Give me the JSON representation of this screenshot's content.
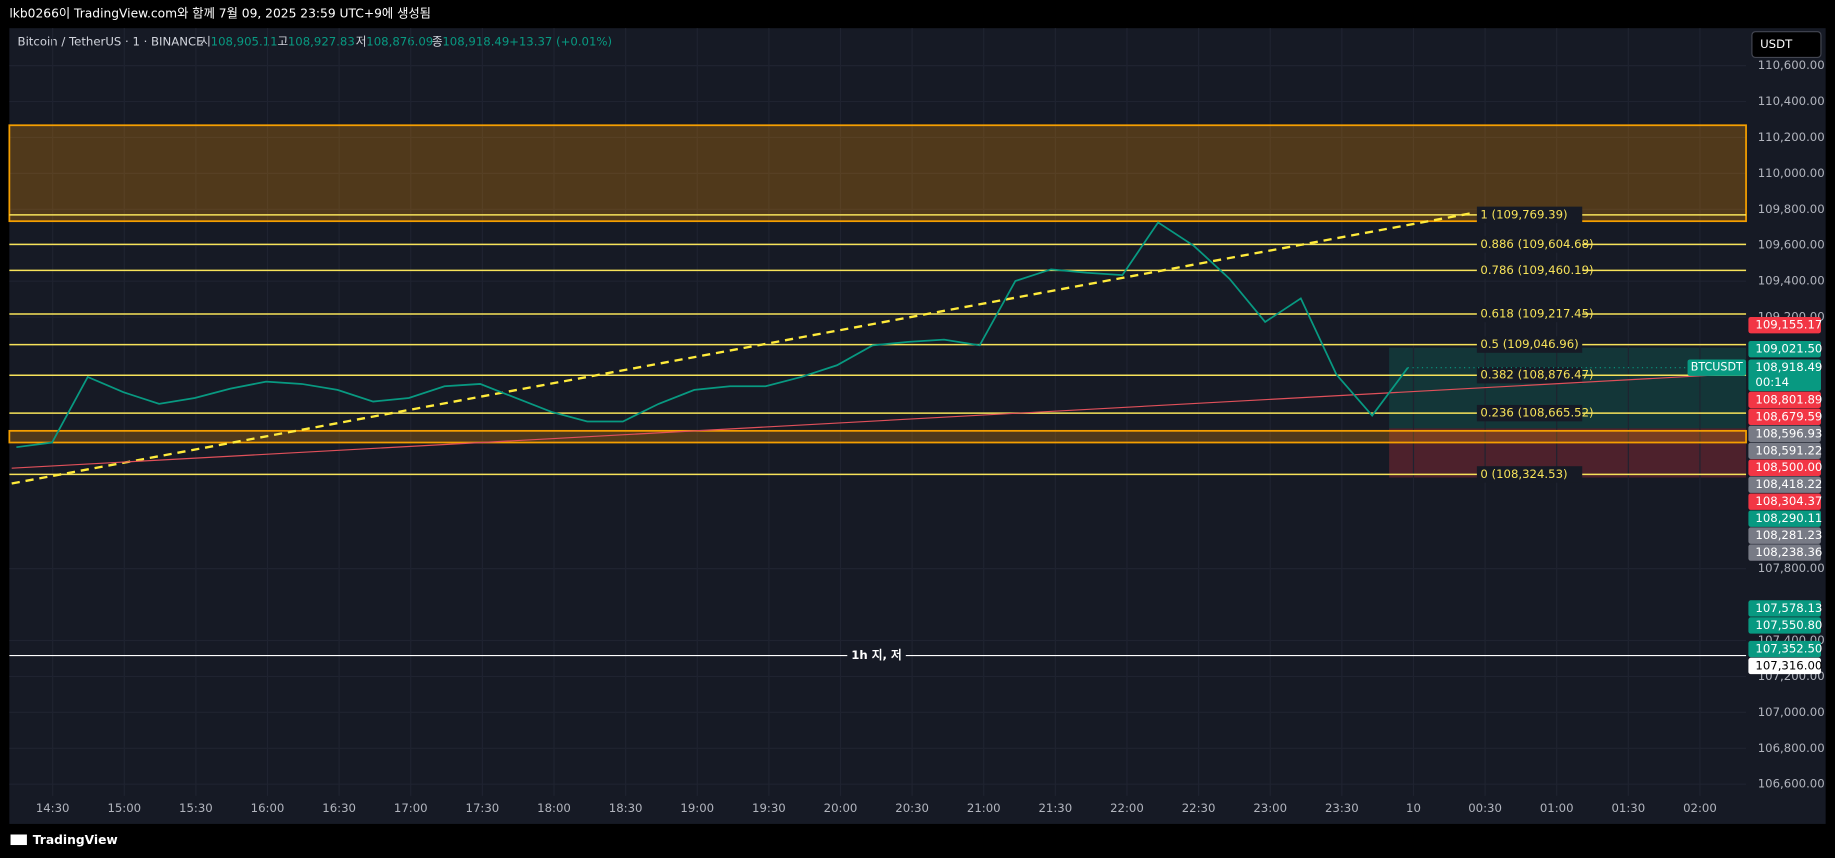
{
  "header": {
    "caption": "lkb0266이 TradingView.com와 함께 7월 09, 2025 23:59 UTC+9에 생성됨"
  },
  "symbol": {
    "name": "Bitcoin / TetherUS · 1 · BINANCE",
    "o_label": "시",
    "o": "108,905.11",
    "h_label": "고",
    "h": "108,927.83",
    "l_label": "저",
    "l": "108,876.09",
    "c_label": "종",
    "c": "108,918.49",
    "change": "+13.37 (+0.01%)"
  },
  "currency_button": "USDT",
  "footer": {
    "brand": "TradingView"
  },
  "chart_data": {
    "type": "line",
    "color": "#089981",
    "values": [
      108476,
      108502,
      108867,
      108782,
      108717,
      108750,
      108802,
      108841,
      108828,
      108795,
      108730,
      108750,
      108815,
      108828,
      108750,
      108672,
      108619,
      108619,
      108717,
      108795,
      108815,
      108815,
      108867,
      108932,
      109043,
      109062,
      109075,
      109043,
      109401,
      109466,
      109447,
      109434,
      109727,
      109597,
      109414,
      109173,
      109304,
      108880,
      108652,
      108918.49
    ],
    "ylim": [
      106535,
      110652
    ],
    "yticks": [
      {
        "value": 106600,
        "label": "106,600.00"
      },
      {
        "value": 106800,
        "label": "106,800.00"
      },
      {
        "value": 107000,
        "label": "107,000.00"
      },
      {
        "value": 107200,
        "label": "107,200.00"
      },
      {
        "value": 107400,
        "label": "107,400.00"
      },
      {
        "value": 107800,
        "label": "107,800.00"
      },
      {
        "value": 109200,
        "label": "109,200.00"
      },
      {
        "value": 109400,
        "label": "109,400.00"
      },
      {
        "value": 109600,
        "label": "109,600.00"
      },
      {
        "value": 109800,
        "label": "109,800.00"
      },
      {
        "value": 110000,
        "label": "110,000.00"
      },
      {
        "value": 110200,
        "label": "110,200.00"
      },
      {
        "value": 110400,
        "label": "110,400.00"
      },
      {
        "value": 110600,
        "label": "110,600.00"
      }
    ],
    "xticks": [
      "14:30",
      "15:00",
      "15:30",
      "16:00",
      "16:30",
      "17:00",
      "17:30",
      "18:00",
      "18:30",
      "19:00",
      "19:30",
      "20:00",
      "20:30",
      "21:00",
      "21:30",
      "22:00",
      "22:30",
      "23:00",
      "23:30",
      "10",
      "00:30",
      "01:00",
      "01:30",
      "02:00"
    ],
    "grid": true,
    "fib_levels": [
      {
        "value": 109769.39,
        "label": "1 (109,769.39)"
      },
      {
        "value": 109604.68,
        "label": "0.886 (109,604.68)"
      },
      {
        "value": 109460.19,
        "label": "0.786 (109,460.19)"
      },
      {
        "value": 109217.45,
        "label": "0.618 (109,217.45)"
      },
      {
        "value": 109046.96,
        "label": "0.5 (109,046.96)"
      },
      {
        "value": 108876.47,
        "label": "0.382 (108,876.47)"
      },
      {
        "value": 108665.52,
        "label": "0.236 (108,665.52)"
      },
      {
        "value": 108324.53,
        "label": "0 (108,324.53)"
      }
    ],
    "zones": [
      {
        "top": 110268,
        "bottom": 109734
      },
      {
        "top": 108567,
        "bottom": 108502
      }
    ],
    "trendlines": [
      {
        "from": 108274,
        "to": 109779,
        "color": "#ffeb3b",
        "dashed": true
      },
      {
        "from": 108359,
        "to": 108887,
        "color": "#e0505a",
        "dashed": false
      }
    ],
    "low_line": {
      "value": 107316,
      "label": "1h 지, 저"
    },
    "symbol_tag": "BTCUSDT",
    "countdown": "00:14",
    "price_labels": [
      {
        "value": 109155.17,
        "label": "109,155.17",
        "color": "#f23645"
      },
      {
        "value": 109021.5,
        "label": "109,021.50",
        "color": "#089981"
      },
      {
        "value": 108918.49,
        "label": "108,918.49",
        "color": "#089981"
      },
      {
        "value": 108801.89,
        "label": "108,801.89",
        "color": "#f23645"
      },
      {
        "value": 108679.59,
        "label": "108,679.59",
        "color": "#f23645"
      },
      {
        "value": 108596.93,
        "label": "108,596.93",
        "color": "#787b86"
      },
      {
        "value": 108591.22,
        "label": "108,591.22",
        "color": "#787b86"
      },
      {
        "value": 108500.0,
        "label": "108,500.00",
        "color": "#f23645"
      },
      {
        "value": 108418.22,
        "label": "108,418.22",
        "color": "#787b86"
      },
      {
        "value": 108304.37,
        "label": "108,304.37",
        "color": "#f23645"
      },
      {
        "value": 108290.11,
        "label": "108,290.11",
        "color": "#089981"
      },
      {
        "value": 108281.23,
        "label": "108,281.23",
        "color": "#787b86"
      },
      {
        "value": 108238.36,
        "label": "108,238.36",
        "color": "#787b86"
      },
      {
        "value": 107578.13,
        "label": "107,578.13",
        "color": "#089981"
      },
      {
        "value": 107550.8,
        "label": "107,550.80",
        "color": "#089981"
      },
      {
        "value": 107352.5,
        "label": "107,352.50",
        "color": "#089981"
      },
      {
        "value": 107316.0,
        "label": "107,316.00",
        "color": "#ffffff"
      }
    ]
  }
}
